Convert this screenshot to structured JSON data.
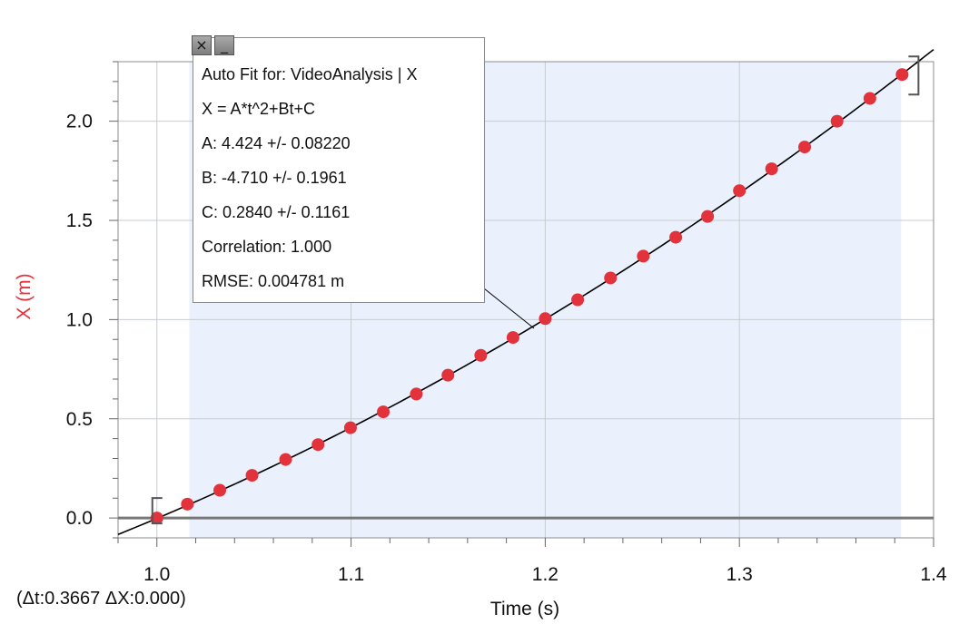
{
  "chart_data": {
    "type": "scatter",
    "xlabel": "Time (s)",
    "ylabel": "X (m)",
    "xlim": [
      0.98,
      1.4
    ],
    "ylim": [
      -0.1,
      2.3
    ],
    "x_ticks": [
      "1.0",
      "1.1",
      "1.2",
      "1.3",
      "1.4"
    ],
    "y_ticks": [
      "0.0",
      "0.5",
      "1.0",
      "1.5",
      "2.0"
    ],
    "grid": true,
    "selection_range": [
      1.0167,
      1.3833
    ],
    "series": [
      {
        "points": [
          {
            "x": 1.0,
            "y": 0.0
          },
          {
            "x": 1.0157,
            "y": 0.07
          },
          {
            "x": 1.0324,
            "y": 0.14
          },
          {
            "x": 1.049,
            "y": 0.215
          },
          {
            "x": 1.0663,
            "y": 0.295
          },
          {
            "x": 1.083,
            "y": 0.37
          },
          {
            "x": 1.0997,
            "y": 0.455
          },
          {
            "x": 1.1166,
            "y": 0.535
          },
          {
            "x": 1.1336,
            "y": 0.625
          },
          {
            "x": 1.1499,
            "y": 0.72
          },
          {
            "x": 1.1668,
            "y": 0.82
          },
          {
            "x": 1.1834,
            "y": 0.91
          },
          {
            "x": 1.2,
            "y": 1.005
          },
          {
            "x": 1.2167,
            "y": 1.1
          },
          {
            "x": 1.2336,
            "y": 1.21
          },
          {
            "x": 1.2505,
            "y": 1.32
          },
          {
            "x": 1.2672,
            "y": 1.415
          },
          {
            "x": 1.2836,
            "y": 1.52
          },
          {
            "x": 1.3,
            "y": 1.65
          },
          {
            "x": 1.3166,
            "y": 1.76
          },
          {
            "x": 1.3336,
            "y": 1.87
          },
          {
            "x": 1.3503,
            "y": 2.0
          },
          {
            "x": 1.3672,
            "y": 2.115
          },
          {
            "x": 1.3838,
            "y": 2.235
          }
        ]
      }
    ],
    "fit": {
      "A": 4.424,
      "B": -4.71,
      "C": 0.284
    }
  },
  "colors": {
    "point": "#e2323c",
    "ylabel": "#e2323c",
    "selection": "#eaf1fc",
    "grid": "#c8ccd2",
    "zero_line": "#777777",
    "fit_line": "#000000"
  },
  "fit_box": {
    "title": "Auto Fit for: VideoAnalysis | X",
    "equation": "X = A*t^2+Bt+C",
    "a_line": "A: 4.424 +/- 0.08220",
    "b_line": "B: -4.710 +/- 0.1961",
    "c_line": "C: 0.2840 +/- 0.1161",
    "correlation": "Correlation: 1.000",
    "rmse": "RMSE: 0.004781 m",
    "close_label": "×",
    "minimize_label": "_"
  },
  "delta_readout": "(Δt:0.3667 ΔX:0.000)"
}
